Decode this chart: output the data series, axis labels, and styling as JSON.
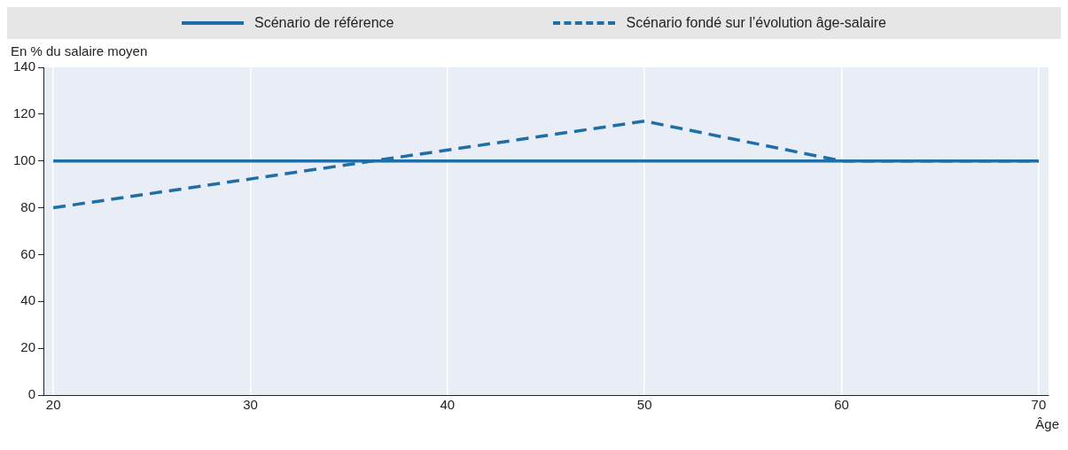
{
  "chart_data": {
    "type": "line",
    "xlabel": "Âge",
    "ylabel": "En % du salaire moyen",
    "xlim": [
      19.5,
      70.5
    ],
    "xticks": [
      20,
      30,
      40,
      50,
      60,
      70
    ],
    "ylim": [
      0,
      140
    ],
    "yticks": [
      0,
      20,
      40,
      60,
      80,
      100,
      120,
      140
    ],
    "grid": "x",
    "legend": "top",
    "marker": "none",
    "series": [
      {
        "name": "Scénario de référence",
        "color": "#1f6ea8",
        "line_style": "solid",
        "x": [
          20,
          70
        ],
        "values": [
          100,
          100
        ]
      },
      {
        "name": "Scénario fondé sur l’évolution âge-salaire",
        "color": "#1f6ea8",
        "line_style": "dashed",
        "x": [
          20,
          50,
          60,
          70
        ],
        "values": [
          80,
          117,
          100,
          100
        ]
      }
    ]
  }
}
